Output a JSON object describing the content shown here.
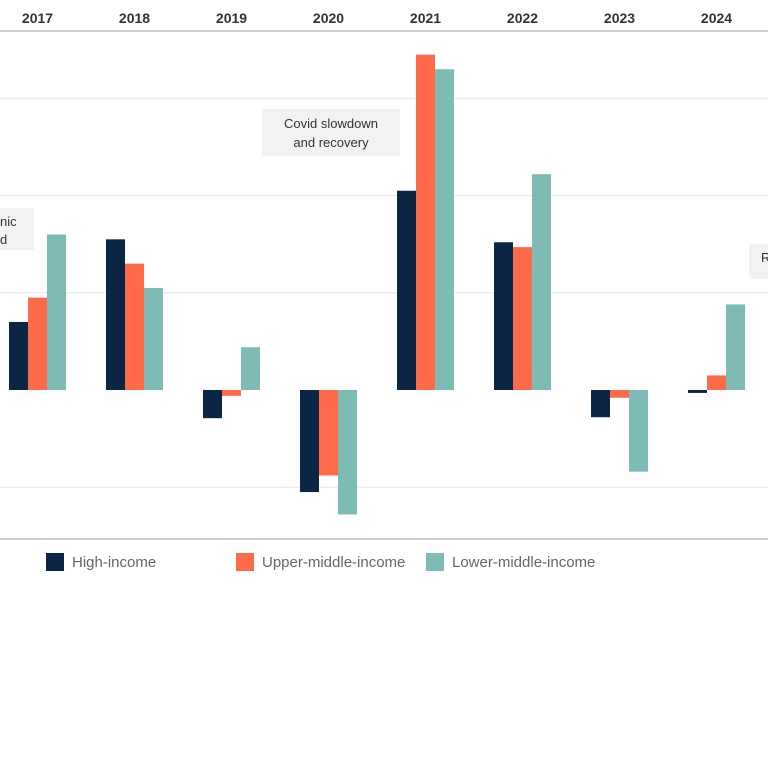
{
  "chart_data": {
    "type": "bar",
    "categories": [
      "2017",
      "2018",
      "2019",
      "2020",
      "2021",
      "2022",
      "2023",
      "2024"
    ],
    "series": [
      {
        "name": "High-income",
        "color": "#0b2545",
        "values": [
          7.0,
          15.5,
          -2.9,
          -10.5,
          20.5,
          15.2,
          -2.8,
          -0.3
        ]
      },
      {
        "name": "Upper-middle-income",
        "color": "#ff6b4a",
        "values": [
          9.5,
          13.0,
          -0.6,
          -8.8,
          34.5,
          14.7,
          -0.8,
          1.5
        ]
      },
      {
        "name": "Lower-middle-income",
        "color": "#7dbbb4",
        "values": [
          16.0,
          10.5,
          4.4,
          -12.8,
          33.0,
          22.2,
          -8.4,
          8.8
        ]
      }
    ],
    "ylim": [
      -15,
      35
    ],
    "annotations": [
      {
        "text_lines": [
          "nic",
          "d"
        ],
        "near": "2017"
      },
      {
        "text_lines": [
          "Covid slowdown",
          "and recovery"
        ],
        "near": "2020-2021"
      },
      {
        "text_lines": [
          "R"
        ],
        "near": "2024"
      }
    ],
    "legend_position": "bottom",
    "grid": true
  },
  "colors": {
    "gridline": "#e6e6e6",
    "axis": "#cccccc",
    "annotation_bg": "#f2f2f2"
  }
}
